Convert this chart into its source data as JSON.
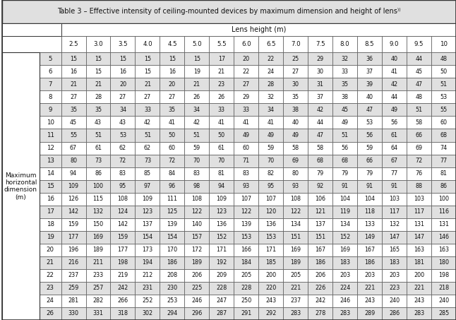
{
  "title": "Table 3 – Effective intensity of ceiling-mounted devices by maximum dimension and height of lens⁾⁾",
  "lens_label": "Lens height (m)",
  "row_label": "Maximum\nhorizontal\ndimension\n(m)",
  "col_headers": [
    "2.5",
    "3.0",
    "3.5",
    "4.0",
    "4.5",
    "5.0",
    "5.5",
    "6.0",
    "6.5",
    "7.0",
    "7.5",
    "8.0",
    "8.5",
    "9.0",
    "9.5",
    "10"
  ],
  "row_headers": [
    5,
    6,
    7,
    8,
    9,
    10,
    11,
    12,
    13,
    14,
    15,
    16,
    17,
    18,
    19,
    20,
    21,
    22,
    23,
    24,
    26
  ],
  "table_data": [
    [
      15,
      15,
      15,
      15,
      15,
      15,
      17,
      20,
      22,
      25,
      29,
      32,
      36,
      40,
      44,
      48
    ],
    [
      16,
      15,
      16,
      15,
      16,
      19,
      21,
      22,
      24,
      27,
      30,
      33,
      37,
      41,
      45,
      50
    ],
    [
      21,
      21,
      20,
      21,
      20,
      21,
      23,
      27,
      28,
      30,
      31,
      35,
      39,
      42,
      47,
      51
    ],
    [
      27,
      28,
      27,
      27,
      27,
      26,
      26,
      29,
      32,
      35,
      37,
      38,
      40,
      44,
      48,
      53
    ],
    [
      35,
      35,
      34,
      33,
      35,
      34,
      33,
      33,
      34,
      38,
      42,
      45,
      47,
      49,
      51,
      55
    ],
    [
      45,
      43,
      43,
      42,
      41,
      42,
      41,
      41,
      41,
      40,
      44,
      49,
      53,
      56,
      58,
      60
    ],
    [
      55,
      51,
      53,
      51,
      50,
      51,
      50,
      49,
      49,
      49,
      47,
      51,
      56,
      61,
      66,
      68
    ],
    [
      67,
      61,
      62,
      62,
      60,
      59,
      61,
      60,
      59,
      58,
      58,
      56,
      59,
      64,
      69,
      74
    ],
    [
      80,
      73,
      72,
      73,
      72,
      70,
      70,
      71,
      70,
      69,
      68,
      68,
      66,
      67,
      72,
      77
    ],
    [
      94,
      86,
      83,
      85,
      84,
      83,
      81,
      83,
      82,
      80,
      79,
      79,
      79,
      77,
      76,
      81
    ],
    [
      109,
      100,
      95,
      97,
      96,
      98,
      94,
      93,
      95,
      93,
      92,
      91,
      91,
      91,
      88,
      86
    ],
    [
      126,
      115,
      108,
      109,
      111,
      108,
      109,
      107,
      107,
      108,
      106,
      104,
      104,
      103,
      103,
      100
    ],
    [
      142,
      132,
      124,
      123,
      125,
      122,
      123,
      122,
      120,
      122,
      121,
      119,
      118,
      117,
      117,
      116
    ],
    [
      159,
      150,
      142,
      137,
      139,
      140,
      136,
      139,
      136,
      134,
      137,
      134,
      133,
      132,
      131,
      131
    ],
    [
      177,
      169,
      159,
      154,
      154,
      157,
      152,
      153,
      153,
      151,
      151,
      152,
      149,
      147,
      147,
      146
    ],
    [
      196,
      189,
      177,
      173,
      170,
      172,
      171,
      166,
      171,
      169,
      167,
      169,
      167,
      165,
      163,
      163
    ],
    [
      216,
      211,
      198,
      194,
      186,
      189,
      192,
      184,
      185,
      189,
      186,
      183,
      186,
      183,
      181,
      180
    ],
    [
      237,
      233,
      219,
      212,
      208,
      206,
      209,
      205,
      200,
      205,
      206,
      203,
      203,
      203,
      200,
      198
    ],
    [
      259,
      257,
      242,
      231,
      230,
      225,
      228,
      228,
      220,
      221,
      226,
      224,
      221,
      223,
      221,
      218
    ],
    [
      281,
      282,
      266,
      252,
      253,
      246,
      247,
      250,
      243,
      237,
      242,
      246,
      243,
      240,
      243,
      240
    ],
    [
      330,
      331,
      318,
      302,
      294,
      296,
      287,
      291,
      292,
      283,
      278,
      283,
      289,
      286,
      283,
      285
    ]
  ],
  "title_bg": "#e0e0e0",
  "alt_row_bg": "#e0e0e0",
  "white": "#ffffff",
  "border_dark": "#333333",
  "border_med": "#555555",
  "text_color": "#111111"
}
